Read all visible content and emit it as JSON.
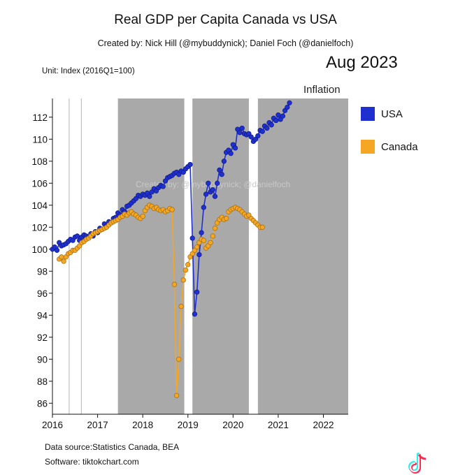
{
  "header": {
    "title": "Real GDP per Capita Canada vs USA",
    "subtitle": "Created by: Nick Hill (@mybuddynick); Daniel Foch (@danielfoch)",
    "unit": "Unit: Index (2016Q1=100)",
    "date": "Aug 2023"
  },
  "watermark": "Created by: @mybuddynick; @danielfoch",
  "footer": {
    "source": "Data source:Statistics Canada, BEA",
    "software": "Software: tiktokchart.com"
  },
  "chart_data": {
    "type": "line",
    "title": "Real GDP per Capita Canada vs USA",
    "ylabel": "",
    "xlabel": "",
    "xlim": [
      2016.0,
      2022.55
    ],
    "ylim": [
      85,
      113.7
    ],
    "x_ticks": [
      2016,
      2017,
      2018,
      2019,
      2020,
      2021,
      2022
    ],
    "y_ticks": [
      86,
      88,
      90,
      92,
      94,
      96,
      98,
      100,
      102,
      104,
      106,
      108,
      110,
      112
    ],
    "legend": {
      "position": "right"
    },
    "shaded_periods": [
      [
        2017.45,
        2018.92
      ],
      [
        2019.1,
        2020.35
      ],
      [
        2020.55,
        2022.55
      ]
    ],
    "vertical_lines": [
      2016.37,
      2016.64
    ],
    "annotation": {
      "text": "Inflation",
      "x": 2022.0,
      "y": 114.0
    },
    "colors": {
      "USA": "#1f2fd0",
      "Canada": "#f5a623",
      "shade": "#a9a9a9"
    },
    "series": [
      {
        "name": "USA",
        "color": "#1f2fd0",
        "points": [
          [
            2016.0,
            100.0
          ],
          [
            2016.05,
            100.2
          ],
          [
            2016.1,
            99.9
          ],
          [
            2016.15,
            100.6
          ],
          [
            2016.2,
            100.3
          ],
          [
            2016.25,
            100.4
          ],
          [
            2016.3,
            100.5
          ],
          [
            2016.35,
            100.7
          ],
          [
            2016.4,
            100.9
          ],
          [
            2016.45,
            100.8
          ],
          [
            2016.5,
            101.1
          ],
          [
            2016.55,
            101.2
          ],
          [
            2016.6,
            100.8
          ],
          [
            2016.65,
            101.1
          ],
          [
            2016.7,
            101.3
          ],
          [
            2016.75,
            101.2
          ],
          [
            2016.8,
            101.1
          ],
          [
            2016.85,
            101.4
          ],
          [
            2016.9,
            101.2
          ],
          [
            2016.95,
            101.6
          ],
          [
            2017.0,
            101.5
          ],
          [
            2017.05,
            101.9
          ],
          [
            2017.1,
            101.8
          ],
          [
            2017.15,
            102.3
          ],
          [
            2017.2,
            102.1
          ],
          [
            2017.25,
            102.5
          ],
          [
            2017.3,
            102.4
          ],
          [
            2017.35,
            102.8
          ],
          [
            2017.4,
            102.9
          ],
          [
            2017.45,
            103.3
          ],
          [
            2017.5,
            103.1
          ],
          [
            2017.55,
            103.6
          ],
          [
            2017.6,
            103.4
          ],
          [
            2017.65,
            103.9
          ],
          [
            2017.7,
            104.0
          ],
          [
            2017.75,
            104.2
          ],
          [
            2017.8,
            104.4
          ],
          [
            2017.85,
            104.6
          ],
          [
            2017.9,
            104.9
          ],
          [
            2017.95,
            104.8
          ],
          [
            2018.0,
            105.0
          ],
          [
            2018.05,
            104.9
          ],
          [
            2018.1,
            105.1
          ],
          [
            2018.15,
            104.8
          ],
          [
            2018.2,
            105.2
          ],
          [
            2018.25,
            105.5
          ],
          [
            2018.3,
            105.3
          ],
          [
            2018.35,
            105.6
          ],
          [
            2018.4,
            105.8
          ],
          [
            2018.45,
            105.7
          ],
          [
            2018.5,
            106.2
          ],
          [
            2018.55,
            106.5
          ],
          [
            2018.6,
            106.6
          ],
          [
            2018.65,
            106.7
          ],
          [
            2018.7,
            106.9
          ],
          [
            2018.75,
            107.0
          ],
          [
            2018.8,
            106.8
          ],
          [
            2018.85,
            107.1
          ],
          [
            2018.9,
            107.0
          ],
          [
            2018.95,
            107.3
          ],
          [
            2019.0,
            107.5
          ],
          [
            2019.05,
            107.7
          ],
          [
            2019.1,
            101.0
          ],
          [
            2019.15,
            94.1
          ],
          [
            2019.2,
            96.1
          ],
          [
            2019.25,
            99.5
          ],
          [
            2019.3,
            101.5
          ],
          [
            2019.35,
            103.8
          ],
          [
            2019.4,
            105.0
          ],
          [
            2019.45,
            106.0
          ],
          [
            2019.5,
            105.2
          ],
          [
            2019.55,
            105.4
          ],
          [
            2019.6,
            104.8
          ],
          [
            2019.65,
            106.0
          ],
          [
            2019.7,
            107.2
          ],
          [
            2019.75,
            106.8
          ],
          [
            2019.8,
            108.0
          ],
          [
            2019.85,
            108.8
          ],
          [
            2019.9,
            109.0
          ],
          [
            2019.95,
            108.7
          ],
          [
            2020.0,
            109.5
          ],
          [
            2020.05,
            109.2
          ],
          [
            2020.1,
            110.9
          ],
          [
            2020.15,
            110.6
          ],
          [
            2020.2,
            111.0
          ],
          [
            2020.25,
            110.5
          ],
          [
            2020.3,
            110.4
          ],
          [
            2020.35,
            110.5
          ],
          [
            2020.4,
            110.2
          ],
          [
            2020.45,
            109.8
          ],
          [
            2020.5,
            110.0
          ],
          [
            2020.55,
            110.3
          ],
          [
            2020.6,
            110.8
          ],
          [
            2020.65,
            110.7
          ],
          [
            2020.7,
            111.2
          ],
          [
            2020.75,
            111.0
          ],
          [
            2020.8,
            111.5
          ],
          [
            2020.85,
            111.3
          ],
          [
            2020.9,
            111.9
          ],
          [
            2020.95,
            111.7
          ],
          [
            2021.0,
            112.2
          ],
          [
            2021.05,
            111.8
          ],
          [
            2021.1,
            112.1
          ],
          [
            2021.15,
            112.6
          ],
          [
            2021.2,
            112.9
          ],
          [
            2021.25,
            113.3
          ]
        ]
      },
      {
        "name": "Canada",
        "color": "#f5a623",
        "points": [
          [
            2016.15,
            99.1
          ],
          [
            2016.2,
            99.3
          ],
          [
            2016.25,
            98.9
          ],
          [
            2016.3,
            99.3
          ],
          [
            2016.35,
            99.6
          ],
          [
            2016.4,
            99.7
          ],
          [
            2016.45,
            99.9
          ],
          [
            2016.5,
            99.9
          ],
          [
            2016.55,
            100.1
          ],
          [
            2016.6,
            100.3
          ],
          [
            2016.65,
            100.6
          ],
          [
            2016.7,
            100.7
          ],
          [
            2016.75,
            100.9
          ],
          [
            2016.8,
            101.0
          ],
          [
            2016.85,
            101.2
          ],
          [
            2016.9,
            101.4
          ],
          [
            2016.95,
            101.5
          ],
          [
            2017.0,
            101.6
          ],
          [
            2017.05,
            101.7
          ],
          [
            2017.1,
            101.8
          ],
          [
            2017.15,
            101.9
          ],
          [
            2017.2,
            102.0
          ],
          [
            2017.25,
            102.2
          ],
          [
            2017.3,
            102.4
          ],
          [
            2017.35,
            102.5
          ],
          [
            2017.4,
            102.6
          ],
          [
            2017.45,
            102.7
          ],
          [
            2017.5,
            102.9
          ],
          [
            2017.55,
            103.0
          ],
          [
            2017.6,
            103.2
          ],
          [
            2017.65,
            103.1
          ],
          [
            2017.7,
            103.3
          ],
          [
            2017.75,
            103.4
          ],
          [
            2017.8,
            103.2
          ],
          [
            2017.85,
            103.1
          ],
          [
            2017.9,
            102.9
          ],
          [
            2017.95,
            102.8
          ],
          [
            2018.0,
            103.0
          ],
          [
            2018.05,
            103.5
          ],
          [
            2018.1,
            103.8
          ],
          [
            2018.15,
            104.0
          ],
          [
            2018.2,
            103.9
          ],
          [
            2018.25,
            103.7
          ],
          [
            2018.3,
            103.8
          ],
          [
            2018.35,
            103.6
          ],
          [
            2018.4,
            103.5
          ],
          [
            2018.45,
            103.6
          ],
          [
            2018.5,
            103.4
          ],
          [
            2018.55,
            103.5
          ],
          [
            2018.6,
            103.7
          ],
          [
            2018.65,
            103.6
          ],
          [
            2018.7,
            96.8
          ],
          [
            2018.75,
            86.7
          ],
          [
            2018.8,
            90.0
          ],
          [
            2018.85,
            94.8
          ],
          [
            2018.9,
            97.2
          ],
          [
            2018.95,
            98.1
          ],
          [
            2019.0,
            98.6
          ],
          [
            2019.05,
            99.3
          ],
          [
            2019.1,
            99.6
          ],
          [
            2019.15,
            99.9
          ],
          [
            2019.2,
            100.2
          ],
          [
            2019.25,
            100.6
          ],
          [
            2019.3,
            100.9
          ],
          [
            2019.35,
            100.8
          ],
          [
            2019.4,
            100.1
          ],
          [
            2019.45,
            100.3
          ],
          [
            2019.5,
            100.6
          ],
          [
            2019.55,
            101.2
          ],
          [
            2019.6,
            101.9
          ],
          [
            2019.65,
            102.4
          ],
          [
            2019.7,
            102.7
          ],
          [
            2019.75,
            102.9
          ],
          [
            2019.8,
            102.7
          ],
          [
            2019.85,
            102.8
          ],
          [
            2019.9,
            103.4
          ],
          [
            2019.95,
            103.6
          ],
          [
            2020.0,
            103.7
          ],
          [
            2020.05,
            103.8
          ],
          [
            2020.1,
            103.7
          ],
          [
            2020.15,
            103.6
          ],
          [
            2020.2,
            103.4
          ],
          [
            2020.25,
            103.2
          ],
          [
            2020.3,
            103.0
          ],
          [
            2020.35,
            103.1
          ],
          [
            2020.4,
            102.8
          ],
          [
            2020.45,
            102.6
          ],
          [
            2020.5,
            102.4
          ],
          [
            2020.55,
            102.2
          ],
          [
            2020.6,
            102.0
          ],
          [
            2020.65,
            102.0
          ]
        ]
      }
    ]
  }
}
